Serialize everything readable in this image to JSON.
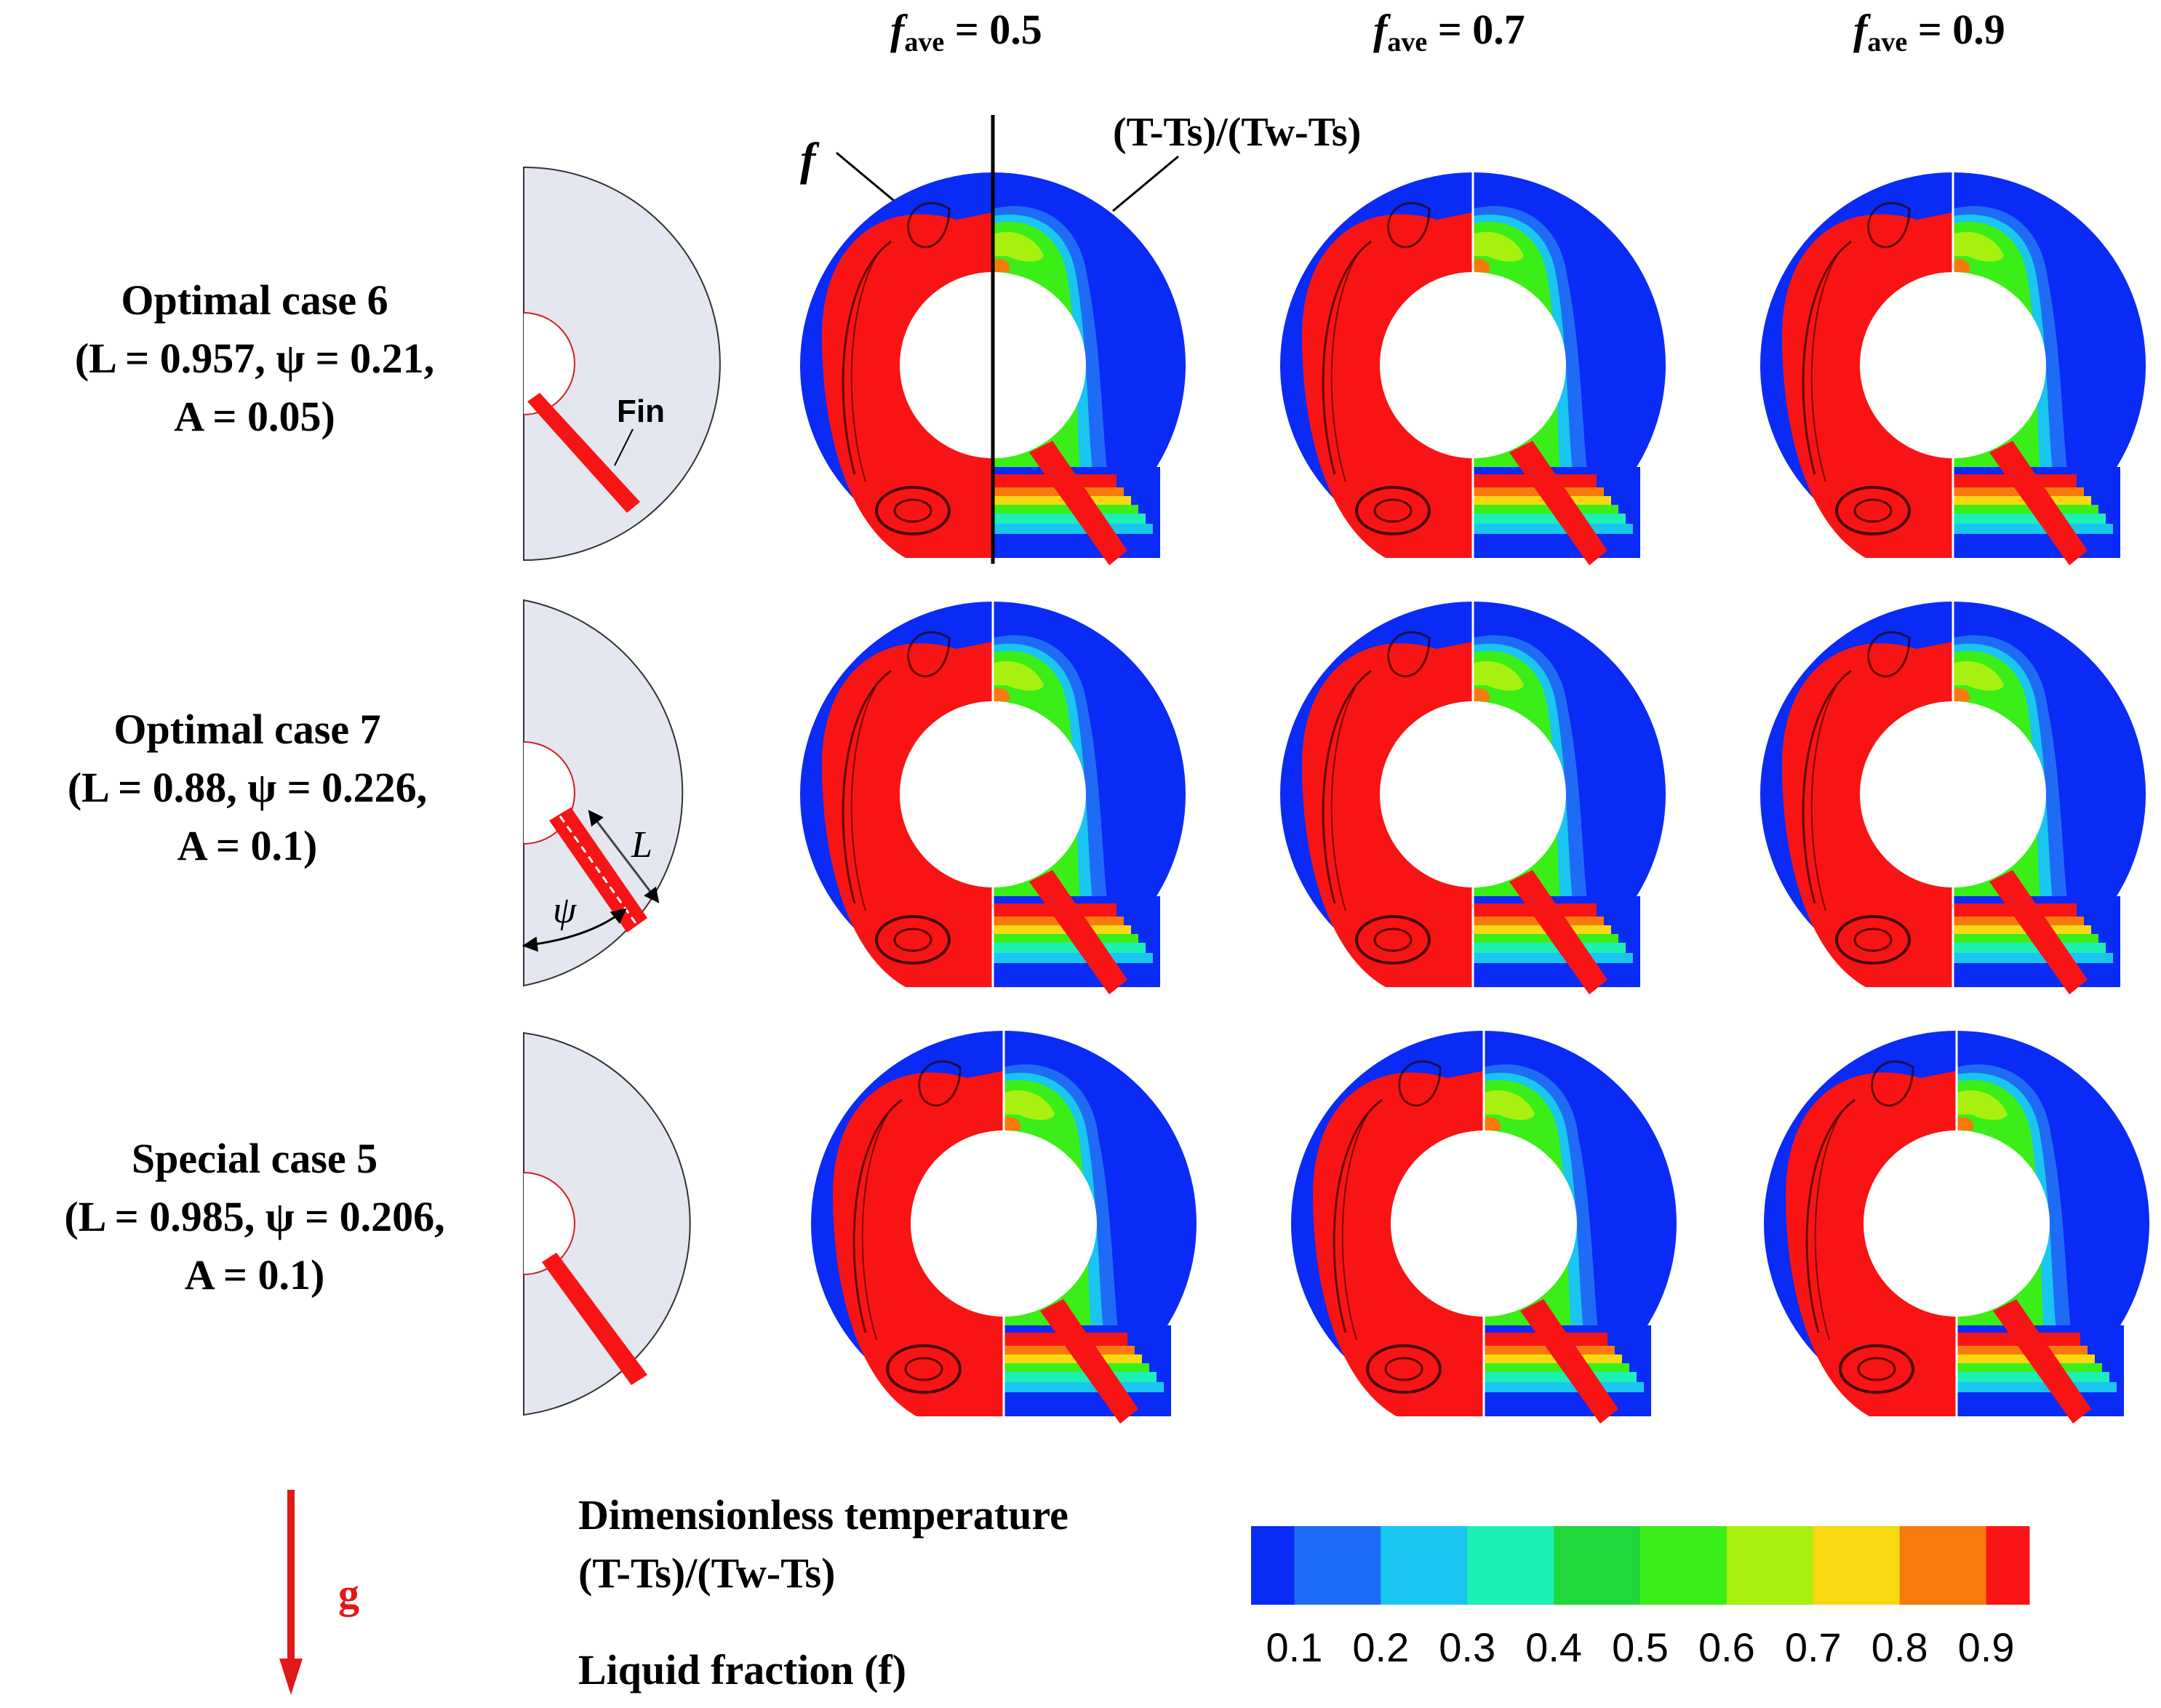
{
  "columns": [
    {
      "var": "f",
      "sub": "ave",
      "eq": " = 0.5"
    },
    {
      "var": "f",
      "sub": "ave",
      "eq": " = 0.7"
    },
    {
      "var": "f",
      "sub": "ave",
      "eq": " = 0.9"
    }
  ],
  "annotations": {
    "f_label": "f",
    "temp_expr": "(T-Ts)/(Tw-Ts)",
    "fin_label": "Fin",
    "L_label": "L",
    "psi_label": "ψ"
  },
  "rows": [
    {
      "name": "Optimal case 6",
      "params_line1": "(L = 0.957, ψ = 0.21,",
      "params_line2": "A = 0.05)"
    },
    {
      "name": "Optimal case 7",
      "params_line1": "(L = 0.88, ψ = 0.226,",
      "params_line2": "A = 0.1)"
    },
    {
      "name": "Special case 5",
      "params_line1": "(L = 0.985, ψ = 0.206,",
      "params_line2": "A = 0.1)"
    }
  ],
  "legend": {
    "gravity_label": "g",
    "title_line1": "Dimensionless temperature",
    "title_line2": "(T-Ts)/(Tw-Ts)",
    "title_line3": "Liquid fraction (f)",
    "ticks": [
      "0.1",
      "0.2",
      "0.3",
      "0.4",
      "0.5",
      "0.6",
      "0.7",
      "0.8",
      "0.9"
    ],
    "colors": [
      "#0a2af5",
      "#1e6cf5",
      "#18c6f0",
      "#1cf0b4",
      "#20d83c",
      "#3cee18",
      "#a8f010",
      "#f8d810",
      "#f87a0c",
      "#f81414"
    ]
  },
  "colors": {
    "solid": "#0a2af5",
    "liquid": "#f81414",
    "fin": "#f81414",
    "schematic_fill": "#e4e7f0"
  }
}
